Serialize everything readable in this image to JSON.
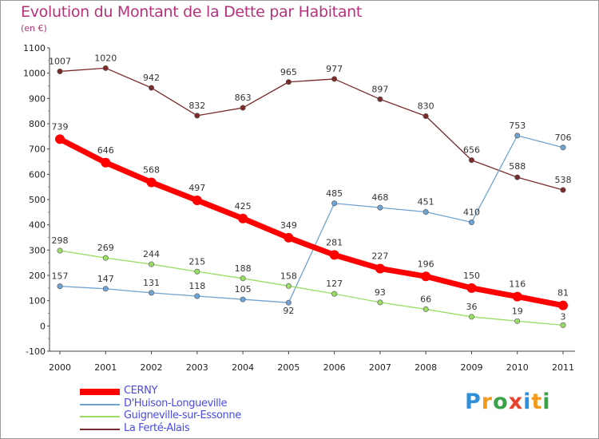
{
  "header": {
    "title": "Evolution du Montant de la Dette par Habitant",
    "subtitle": "(en €)"
  },
  "brand": {
    "logo_text": "Proxiti"
  },
  "chart_data": {
    "type": "line",
    "title": "Evolution du Montant de la Dette par Habitant",
    "subtitle": "(en €)",
    "xlabel": "",
    "ylabel": "",
    "x": [
      "2000",
      "2001",
      "2002",
      "2003",
      "2004",
      "2005",
      "2006",
      "2007",
      "2008",
      "2009",
      "2010",
      "2011"
    ],
    "ylim": [
      -100,
      1100
    ],
    "yticks": [
      -100,
      0,
      100,
      200,
      300,
      400,
      500,
      600,
      700,
      800,
      900,
      1000,
      1100
    ],
    "grid": false,
    "legend": "bottom-left",
    "series": [
      {
        "name": "CERNY",
        "color": "#ff0000",
        "values": [
          739,
          646,
          568,
          497,
          425,
          349,
          281,
          227,
          196,
          150,
          116,
          81
        ]
      },
      {
        "name": "D'Huison-Longueville",
        "color": "#6fa3d1",
        "values": [
          157,
          147,
          131,
          118,
          105,
          92,
          485,
          468,
          451,
          410,
          753,
          706
        ]
      },
      {
        "name": "Guigneville-sur-Essonne",
        "color": "#99dd66",
        "values": [
          298,
          269,
          244,
          215,
          188,
          158,
          127,
          93,
          66,
          36,
          19,
          3
        ]
      },
      {
        "name": "La Ferté-Alais",
        "color": "#7a2a2a",
        "values": [
          1007,
          1020,
          942,
          832,
          863,
          965,
          977,
          897,
          830,
          656,
          588,
          538
        ]
      }
    ]
  }
}
